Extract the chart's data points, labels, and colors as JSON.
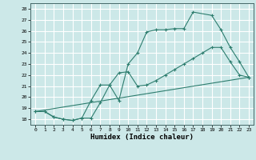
{
  "title": "",
  "xlabel": "Humidex (Indice chaleur)",
  "ylabel": "",
  "background_color": "#cce8e8",
  "grid_color": "#ffffff",
  "line_color": "#2d7d6e",
  "ylim": [
    17.5,
    28.5
  ],
  "xlim": [
    -0.5,
    23.5
  ],
  "yticks": [
    18,
    19,
    20,
    21,
    22,
    23,
    24,
    25,
    26,
    27,
    28
  ],
  "xticks": [
    0,
    1,
    2,
    3,
    4,
    5,
    6,
    7,
    8,
    9,
    10,
    11,
    12,
    13,
    14,
    15,
    16,
    17,
    18,
    19,
    20,
    21,
    22,
    23
  ],
  "line1_x": [
    0,
    1,
    2,
    3,
    4,
    5,
    6,
    7,
    8,
    9,
    10,
    11,
    12,
    13,
    14,
    15,
    16,
    17,
    19,
    20,
    21,
    22,
    23
  ],
  "line1_y": [
    18.7,
    18.7,
    18.2,
    18.0,
    17.9,
    18.1,
    19.7,
    21.1,
    21.1,
    19.7,
    23.0,
    24.0,
    25.9,
    26.1,
    26.1,
    26.2,
    26.2,
    27.7,
    27.4,
    26.1,
    24.5,
    23.2,
    21.8
  ],
  "line2_x": [
    0,
    1,
    2,
    3,
    4,
    5,
    6,
    7,
    8,
    9,
    10,
    11,
    12,
    13,
    14,
    15,
    16,
    17,
    18,
    19,
    20,
    21,
    22,
    23
  ],
  "line2_y": [
    18.7,
    18.7,
    18.2,
    18.0,
    17.9,
    18.1,
    18.1,
    19.5,
    21.1,
    22.2,
    22.3,
    21.0,
    21.1,
    21.5,
    22.0,
    22.5,
    23.0,
    23.5,
    24.0,
    24.5,
    24.5,
    23.2,
    22.0,
    21.8
  ],
  "line3_x": [
    0,
    23
  ],
  "line3_y": [
    18.7,
    21.8
  ]
}
